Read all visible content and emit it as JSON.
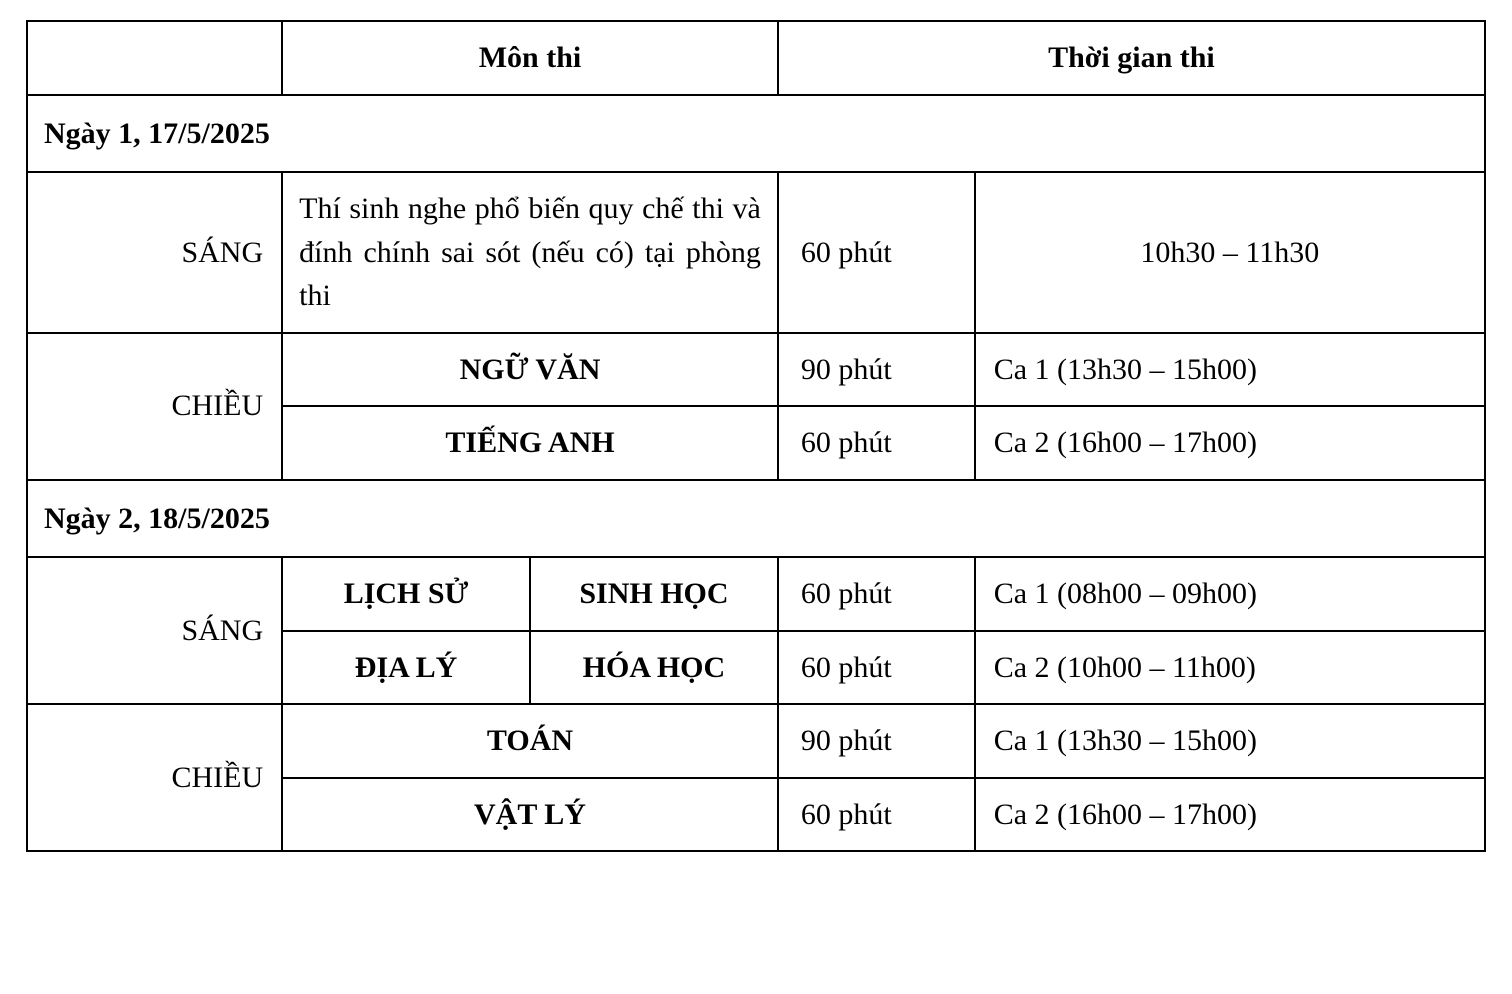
{
  "table": {
    "border_color": "#000000",
    "background_color": "#ffffff",
    "font_family": "Times New Roman",
    "base_font_size_pt": 22,
    "column_widths_pct": [
      17.5,
      17,
      17,
      13.5,
      35
    ],
    "headers": {
      "blank": "",
      "subject": "Môn thi",
      "time": "Thời gian thi"
    },
    "sessions": {
      "morning": "SÁNG",
      "afternoon": "CHIỀU"
    },
    "day1": {
      "label": "Ngày 1, 17/5/2025",
      "morning": {
        "note": "Thí sinh nghe phổ biến quy chế thi và đính chính sai sót (nếu có) tại phòng thi",
        "duration": "60 phút",
        "time": "10h30 – 11h30"
      },
      "afternoon": {
        "row1": {
          "subject": "NGỮ VĂN",
          "duration": "90 phút",
          "time": "Ca 1 (13h30 – 15h00)"
        },
        "row2": {
          "subject": "TIẾNG ANH",
          "duration": "60 phút",
          "time": "Ca 2 (16h00 – 17h00)"
        }
      }
    },
    "day2": {
      "label": "Ngày 2, 18/5/2025",
      "morning": {
        "row1": {
          "subject_a": "LỊCH SỬ",
          "subject_b": "SINH HỌC",
          "duration": "60 phút",
          "time": "Ca 1 (08h00 – 09h00)"
        },
        "row2": {
          "subject_a": "ĐỊA LÝ",
          "subject_b": "HÓA HỌC",
          "duration": "60 phút",
          "time": "Ca 2 (10h00 – 11h00)"
        }
      },
      "afternoon": {
        "row1": {
          "subject": "TOÁN",
          "duration": "90 phút",
          "time": "Ca 1 (13h30 – 15h00)"
        },
        "row2": {
          "subject": "VẬT LÝ",
          "duration": "60 phút",
          "time": "Ca 2 (16h00 – 17h00)"
        }
      }
    }
  }
}
